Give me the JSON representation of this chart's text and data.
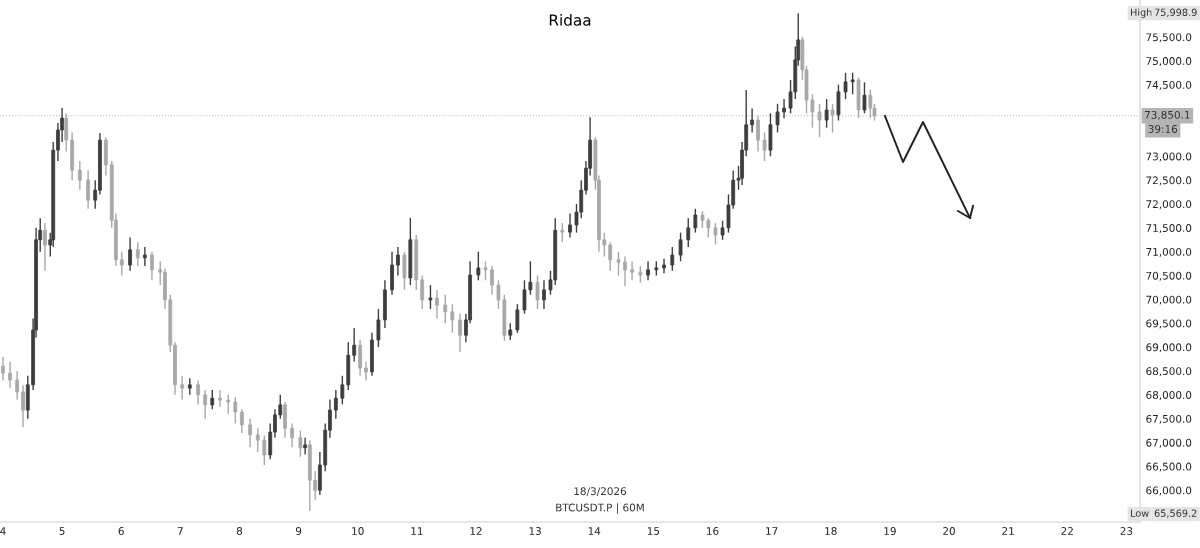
{
  "chart_data": {
    "type": "candlestick",
    "title": "Ridaa",
    "x": [
      4.0,
      4.12,
      4.24,
      4.34,
      4.42,
      4.51,
      4.56,
      4.63,
      4.71,
      4.8,
      4.85,
      4.93,
      5.0,
      5.07,
      5.17,
      5.3,
      5.44,
      5.56,
      5.64,
      5.74,
      5.84,
      5.91,
      6.01,
      6.15,
      6.28,
      6.4,
      6.52,
      6.66,
      6.74,
      6.83,
      6.91,
      7.03,
      7.16,
      7.3,
      7.42,
      7.54,
      7.67,
      7.81,
      7.93,
      8.04,
      8.18,
      8.31,
      8.42,
      8.52,
      8.6,
      8.69,
      8.77,
      8.89,
      9.03,
      9.11,
      9.19,
      9.28,
      9.36,
      9.45,
      9.53,
      9.63,
      9.74,
      9.84,
      9.94,
      10.04,
      10.14,
      10.24,
      10.35,
      10.46,
      10.58,
      10.68,
      10.79,
      10.89,
      10.99,
      11.09,
      11.23,
      11.34,
      11.48,
      11.6,
      11.73,
      11.83,
      11.9,
      12.04,
      12.16,
      12.27,
      12.38,
      12.48,
      12.58,
      12.7,
      12.82,
      12.92,
      13.04,
      13.15,
      13.26,
      13.34,
      13.46,
      13.59,
      13.7,
      13.78,
      13.86,
      13.93,
      14.02,
      14.08,
      14.17,
      14.27,
      14.41,
      14.52,
      14.64,
      14.78,
      14.91,
      15.05,
      15.18,
      15.32,
      15.46,
      15.59,
      15.71,
      15.83,
      15.93,
      16.05,
      16.17,
      16.27,
      16.35,
      16.44,
      16.5,
      16.57,
      16.67,
      16.77,
      16.88,
      16.98,
      17.1,
      17.21,
      17.32,
      17.4,
      17.45,
      17.52,
      17.59,
      17.69,
      17.81,
      17.93,
      18.03,
      18.13,
      18.25,
      18.37,
      18.47,
      18.57,
      18.67,
      18.74
    ],
    "ohlc": [
      [
        68600,
        68800,
        68300,
        68456
      ],
      [
        68456,
        68700,
        68150,
        68310
      ],
      [
        68310,
        68500,
        67900,
        68060
      ],
      [
        68060,
        68200,
        67324,
        67680
      ],
      [
        67680,
        68400,
        67500,
        68210
      ],
      [
        68210,
        69600,
        68100,
        69360
      ],
      [
        69360,
        71500,
        69200,
        71250
      ],
      [
        71250,
        71700,
        71000,
        71450
      ],
      [
        71450,
        71600,
        70600,
        71140
      ],
      [
        71140,
        71400,
        70900,
        71250
      ],
      [
        71250,
        73300,
        71100,
        73130
      ],
      [
        73130,
        73700,
        72900,
        73550
      ],
      [
        73550,
        74010,
        73300,
        73800
      ],
      [
        73800,
        73900,
        73100,
        73340
      ],
      [
        73340,
        73500,
        72500,
        72710
      ],
      [
        72710,
        72900,
        72300,
        72500
      ],
      [
        72500,
        72700,
        71900,
        72080
      ],
      [
        72080,
        72500,
        71900,
        72290
      ],
      [
        72290,
        73490,
        72200,
        73340
      ],
      [
        73340,
        73400,
        72600,
        72820
      ],
      [
        72820,
        72900,
        71500,
        71660
      ],
      [
        71660,
        71800,
        70700,
        70830
      ],
      [
        70830,
        71000,
        70500,
        70720
      ],
      [
        70720,
        71300,
        70600,
        71040
      ],
      [
        71040,
        71200,
        70700,
        70870
      ],
      [
        70870,
        71100,
        70700,
        70930
      ],
      [
        70930,
        71000,
        70400,
        70620
      ],
      [
        70620,
        70800,
        70300,
        70570
      ],
      [
        70570,
        70650,
        69800,
        69990
      ],
      [
        69990,
        70100,
        68900,
        69040
      ],
      [
        69040,
        69100,
        68000,
        68210
      ],
      [
        68210,
        68400,
        67900,
        68140
      ],
      [
        68140,
        68350,
        68000,
        68210
      ],
      [
        68210,
        68300,
        67800,
        68000
      ],
      [
        68000,
        68100,
        67500,
        67790
      ],
      [
        67790,
        68100,
        67700,
        67930
      ],
      [
        67930,
        68100,
        67750,
        67890
      ],
      [
        67890,
        68000,
        67600,
        67850
      ],
      [
        67850,
        67950,
        67400,
        67640
      ],
      [
        67640,
        67700,
        67200,
        67370
      ],
      [
        67370,
        67500,
        66900,
        67160
      ],
      [
        67160,
        67300,
        66800,
        67050
      ],
      [
        67050,
        67150,
        66530,
        66740
      ],
      [
        66740,
        67400,
        66650,
        67220
      ],
      [
        67220,
        67700,
        67100,
        67580
      ],
      [
        67580,
        68000,
        67500,
        67790
      ],
      [
        67790,
        67850,
        67100,
        67300
      ],
      [
        67300,
        67400,
        66900,
        67100
      ],
      [
        67100,
        67250,
        66700,
        66890
      ],
      [
        66890,
        67100,
        66750,
        66950
      ],
      [
        66950,
        67050,
        65569.2,
        66210
      ],
      [
        66210,
        66400,
        65800,
        66000
      ],
      [
        66000,
        66800,
        65900,
        66530
      ],
      [
        66530,
        67400,
        66400,
        67260
      ],
      [
        67260,
        67900,
        67100,
        67680
      ],
      [
        67680,
        68100,
        67500,
        67930
      ],
      [
        67930,
        68400,
        67800,
        68210
      ],
      [
        68210,
        69100,
        68100,
        68830
      ],
      [
        68830,
        69400,
        68700,
        69040
      ],
      [
        69040,
        69150,
        68400,
        68560
      ],
      [
        68560,
        68700,
        68300,
        68480
      ],
      [
        68480,
        69300,
        68400,
        69150
      ],
      [
        69150,
        69800,
        69000,
        69570
      ],
      [
        69570,
        70400,
        69400,
        70200
      ],
      [
        70200,
        71000,
        70100,
        70720
      ],
      [
        70720,
        71100,
        70500,
        70930
      ],
      [
        70930,
        71000,
        70200,
        70450
      ],
      [
        70450,
        71710,
        70300,
        71250
      ],
      [
        71250,
        71350,
        70200,
        70410
      ],
      [
        70410,
        70500,
        69800,
        69990
      ],
      [
        69990,
        70300,
        69800,
        70030
      ],
      [
        70030,
        70200,
        69600,
        69880
      ],
      [
        69880,
        70100,
        69500,
        69740
      ],
      [
        69740,
        69900,
        69300,
        69570
      ],
      [
        69570,
        69700,
        68900,
        69250
      ],
      [
        69250,
        69700,
        69100,
        69570
      ],
      [
        69570,
        70800,
        69500,
        70510
      ],
      [
        70510,
        71000,
        70400,
        70660
      ],
      [
        70660,
        70800,
        70400,
        70620
      ],
      [
        70620,
        70700,
        70100,
        70300
      ],
      [
        70300,
        70400,
        69800,
        69990
      ],
      [
        69990,
        70100,
        69130,
        69250
      ],
      [
        69250,
        69500,
        69150,
        69360
      ],
      [
        69360,
        69900,
        69300,
        69780
      ],
      [
        69780,
        70400,
        69700,
        70200
      ],
      [
        70200,
        70800,
        70100,
        70360
      ],
      [
        70360,
        70500,
        69800,
        69990
      ],
      [
        69990,
        70400,
        69800,
        70200
      ],
      [
        70200,
        70600,
        70100,
        70410
      ],
      [
        70410,
        71700,
        70300,
        71450
      ],
      [
        71450,
        71600,
        71200,
        71410
      ],
      [
        71410,
        71800,
        71300,
        71560
      ],
      [
        71560,
        72000,
        71400,
        71830
      ],
      [
        71830,
        72500,
        71700,
        72290
      ],
      [
        72290,
        72900,
        72200,
        72750
      ],
      [
        72750,
        73820,
        72600,
        73340
      ],
      [
        73340,
        73400,
        72300,
        72500
      ],
      [
        72500,
        72600,
        71000,
        71250
      ],
      [
        71250,
        71400,
        70900,
        71140
      ],
      [
        71140,
        71200,
        70600,
        70830
      ],
      [
        70830,
        71000,
        70500,
        70780
      ],
      [
        70780,
        70900,
        70280,
        70620
      ],
      [
        70620,
        70800,
        70400,
        70570
      ],
      [
        70570,
        70700,
        70350,
        70510
      ],
      [
        70510,
        70800,
        70400,
        70620
      ],
      [
        70620,
        70800,
        70500,
        70660
      ],
      [
        70660,
        70850,
        70550,
        70720
      ],
      [
        70720,
        71100,
        70600,
        70930
      ],
      [
        70930,
        71400,
        70800,
        71250
      ],
      [
        71250,
        71700,
        71100,
        71500
      ],
      [
        71500,
        71900,
        71400,
        71770
      ],
      [
        71770,
        71850,
        71500,
        71660
      ],
      [
        71660,
        71700,
        71300,
        71500
      ],
      [
        71500,
        71600,
        71150,
        71350
      ],
      [
        71350,
        71650,
        71250,
        71500
      ],
      [
        71500,
        72200,
        71400,
        71980
      ],
      [
        71980,
        72700,
        71900,
        72500
      ],
      [
        72500,
        72800,
        72300,
        72540
      ],
      [
        72540,
        73300,
        72400,
        73130
      ],
      [
        73130,
        74390,
        73000,
        73660
      ],
      [
        73660,
        74000,
        73500,
        73760
      ],
      [
        73760,
        73850,
        73100,
        73340
      ],
      [
        73340,
        73500,
        72900,
        73130
      ],
      [
        73130,
        73900,
        73000,
        73660
      ],
      [
        73660,
        74100,
        73500,
        73930
      ],
      [
        73930,
        74200,
        73800,
        74010
      ],
      [
        74010,
        74600,
        73900,
        74350
      ],
      [
        74350,
        75300,
        74200,
        75020
      ],
      [
        75020,
        75998.9,
        74900,
        75440
      ],
      [
        75440,
        75500,
        74600,
        74810
      ],
      [
        74810,
        74900,
        73900,
        74180
      ],
      [
        74180,
        74300,
        73600,
        73930
      ],
      [
        73930,
        74100,
        73400,
        73760
      ],
      [
        73760,
        74200,
        73600,
        73970
      ],
      [
        73970,
        74100,
        73500,
        73870
      ],
      [
        73870,
        74500,
        73750,
        74350
      ],
      [
        74350,
        74750,
        74200,
        74560
      ],
      [
        74560,
        74750,
        74300,
        74600
      ],
      [
        74600,
        74650,
        73800,
        73970
      ],
      [
        73970,
        74550,
        73900,
        74280
      ],
      [
        74280,
        74400,
        73800,
        74010
      ],
      [
        74010,
        74100,
        73750,
        73850.1
      ]
    ],
    "colors": [
      "#a8a8a8",
      "#a8a8a8",
      "#a8a8a8",
      "#a8a8a8",
      "#3d3d3d",
      "#3d3d3d",
      "#3d3d3d",
      "#3d3d3d",
      "#a8a8a8",
      "#3d3d3d",
      "#3d3d3d",
      "#3d3d3d",
      "#3d3d3d",
      "#a8a8a8",
      "#a8a8a8",
      "#a8a8a8",
      "#a8a8a8",
      "#3d3d3d",
      "#3d3d3d",
      "#a8a8a8",
      "#a8a8a8",
      "#a8a8a8",
      "#a8a8a8",
      "#3d3d3d",
      "#a8a8a8",
      "#3d3d3d",
      "#a8a8a8",
      "#a8a8a8",
      "#a8a8a8",
      "#a8a8a8",
      "#a8a8a8",
      "#a8a8a8",
      "#3d3d3d",
      "#a8a8a8",
      "#a8a8a8",
      "#3d3d3d",
      "#a8a8a8",
      "#a8a8a8",
      "#a8a8a8",
      "#a8a8a8",
      "#a8a8a8",
      "#a8a8a8",
      "#a8a8a8",
      "#3d3d3d",
      "#3d3d3d",
      "#3d3d3d",
      "#a8a8a8",
      "#a8a8a8",
      "#a8a8a8",
      "#3d3d3d",
      "#a8a8a8",
      "#a8a8a8",
      "#3d3d3d",
      "#3d3d3d",
      "#3d3d3d",
      "#3d3d3d",
      "#3d3d3d",
      "#3d3d3d",
      "#3d3d3d",
      "#a8a8a8",
      "#a8a8a8",
      "#3d3d3d",
      "#3d3d3d",
      "#3d3d3d",
      "#3d3d3d",
      "#3d3d3d",
      "#a8a8a8",
      "#3d3d3d",
      "#a8a8a8",
      "#a8a8a8",
      "#3d3d3d",
      "#a8a8a8",
      "#a8a8a8",
      "#a8a8a8",
      "#a8a8a8",
      "#3d3d3d",
      "#3d3d3d",
      "#3d3d3d",
      "#a8a8a8",
      "#a8a8a8",
      "#a8a8a8",
      "#a8a8a8",
      "#3d3d3d",
      "#3d3d3d",
      "#3d3d3d",
      "#3d3d3d",
      "#a8a8a8",
      "#3d3d3d",
      "#3d3d3d",
      "#3d3d3d",
      "#a8a8a8",
      "#3d3d3d",
      "#3d3d3d",
      "#3d3d3d",
      "#3d3d3d",
      "#3d3d3d",
      "#a8a8a8",
      "#a8a8a8",
      "#a8a8a8",
      "#a8a8a8",
      "#a8a8a8",
      "#a8a8a8",
      "#a8a8a8",
      "#a8a8a8",
      "#3d3d3d",
      "#3d3d3d",
      "#3d3d3d",
      "#3d3d3d",
      "#3d3d3d",
      "#3d3d3d",
      "#3d3d3d",
      "#a8a8a8",
      "#a8a8a8",
      "#a8a8a8",
      "#3d3d3d",
      "#3d3d3d",
      "#3d3d3d",
      "#3d3d3d",
      "#3d3d3d",
      "#3d3d3d",
      "#3d3d3d",
      "#a8a8a8",
      "#a8a8a8",
      "#3d3d3d",
      "#3d3d3d",
      "#3d3d3d",
      "#3d3d3d",
      "#3d3d3d",
      "#3d3d3d",
      "#a8a8a8",
      "#a8a8a8",
      "#a8a8a8",
      "#a8a8a8",
      "#3d3d3d",
      "#a8a8a8",
      "#3d3d3d",
      "#3d3d3d",
      "#3d3d3d",
      "#a8a8a8",
      "#3d3d3d",
      "#a8a8a8",
      "#a8a8a8"
    ],
    "xlim": [
      3.95,
      23.23
    ],
    "xticks": [
      4,
      5,
      6,
      7,
      8,
      9,
      10,
      11,
      12,
      13,
      14,
      15,
      16,
      17,
      18,
      19,
      20,
      21,
      22,
      23
    ],
    "ylim": [
      65334,
      76276
    ],
    "yticks": [
      {
        "value": 66000,
        "label": "66,000.0"
      },
      {
        "value": 66500,
        "label": "66,500.0"
      },
      {
        "value": 67000,
        "label": "67,000.0"
      },
      {
        "value": 67500,
        "label": "67,500.0"
      },
      {
        "value": 68000,
        "label": "68,000.0"
      },
      {
        "value": 68500,
        "label": "68,500.0"
      },
      {
        "value": 69000,
        "label": "69,000.0"
      },
      {
        "value": 69500,
        "label": "69,500.0"
      },
      {
        "value": 70000,
        "label": "70,000.0"
      },
      {
        "value": 70500,
        "label": "70,500.0"
      },
      {
        "value": 71000,
        "label": "71,000.0"
      },
      {
        "value": 71500,
        "label": "71,500.0"
      },
      {
        "value": 72000,
        "label": "72,000.0"
      },
      {
        "value": 72500,
        "label": "72,500.0"
      },
      {
        "value": 73000,
        "label": "73,000.0"
      },
      {
        "value": 74500,
        "label": "74,500.0"
      },
      {
        "value": 75000,
        "label": "75,000.0"
      },
      {
        "value": 75500,
        "label": "75,500.0"
      }
    ],
    "ref_lines": [
      {
        "axis": "y",
        "value": 73850.1,
        "label": "73,850.1",
        "color": "#b8b8b8",
        "line_style": "dotted"
      }
    ],
    "annotations": [
      "High",
      "75,998.9",
      "Low",
      "65,569.2",
      "39:16",
      "18/3/2026",
      "BTCUSDT.P | 60M"
    ],
    "grid": false
  }
}
